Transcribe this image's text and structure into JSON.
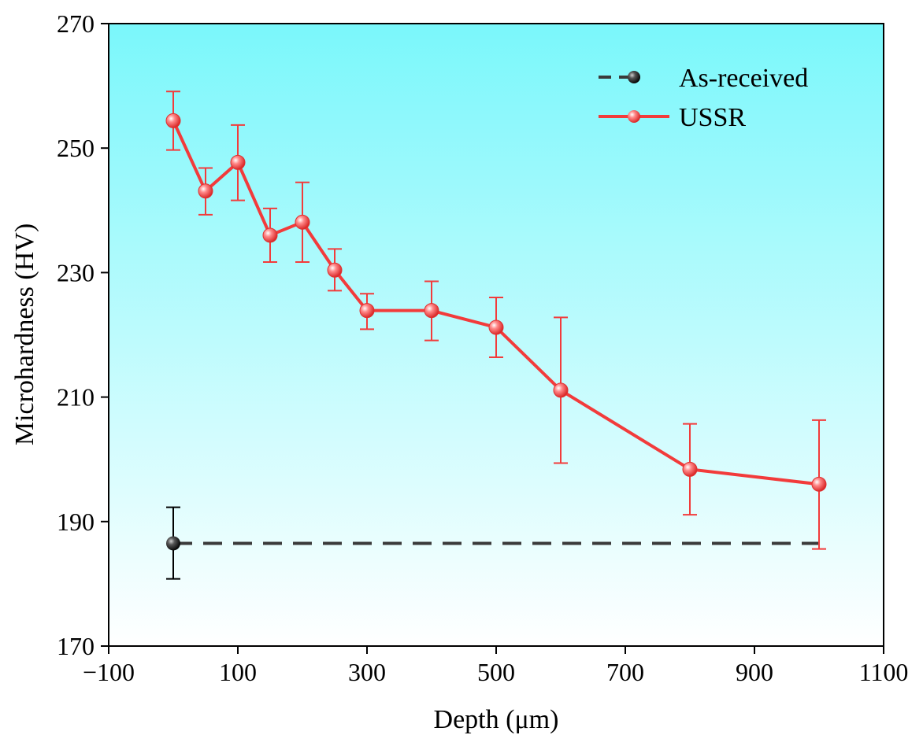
{
  "chart_data": {
    "type": "line",
    "title": "",
    "xlabel": "Depth (μm)",
    "ylabel": "Microhardness (HV)",
    "xlim": [
      -100,
      1100
    ],
    "ylim": [
      170,
      270
    ],
    "xticks": [
      -100,
      100,
      300,
      500,
      700,
      900,
      1100
    ],
    "xtick_labels": [
      "−100",
      "100",
      "300",
      "500",
      "700",
      "900",
      "1100"
    ],
    "yticks": [
      170,
      190,
      210,
      230,
      250,
      270
    ],
    "ytick_labels": [
      "170",
      "190",
      "210",
      "230",
      "250",
      "270"
    ],
    "grid": false,
    "legend_position": "top-right",
    "background_gradient": [
      "#7af7fb",
      "#ffffff"
    ],
    "series": [
      {
        "name": "As-received",
        "style": "dashed",
        "color": "#3a3a3a",
        "marker_color": "#111111",
        "points": [
          {
            "x": 0,
            "y": 186.5,
            "err_low": 180.8,
            "err_high": 192.3
          }
        ],
        "reference_line": {
          "x_start": 0,
          "x_end": 1000,
          "y": 186.5
        }
      },
      {
        "name": "USSR",
        "style": "solid",
        "color": "#f23b3b",
        "marker_color": "#f23b3b",
        "points": [
          {
            "x": 0,
            "y": 254.4,
            "err_low": 249.7,
            "err_high": 259.1
          },
          {
            "x": 50,
            "y": 243.1,
            "err_low": 239.3,
            "err_high": 246.8
          },
          {
            "x": 100,
            "y": 247.7,
            "err_low": 241.6,
            "err_high": 253.7
          },
          {
            "x": 150,
            "y": 236.0,
            "err_low": 231.7,
            "err_high": 240.3
          },
          {
            "x": 200,
            "y": 238.1,
            "err_low": 231.7,
            "err_high": 244.5
          },
          {
            "x": 250,
            "y": 230.4,
            "err_low": 227.1,
            "err_high": 233.8
          },
          {
            "x": 300,
            "y": 223.9,
            "err_low": 220.9,
            "err_high": 226.6
          },
          {
            "x": 400,
            "y": 223.9,
            "err_low": 219.1,
            "err_high": 228.6
          },
          {
            "x": 500,
            "y": 221.2,
            "err_low": 216.4,
            "err_high": 226.0
          },
          {
            "x": 600,
            "y": 211.1,
            "err_low": 199.4,
            "err_high": 222.8
          },
          {
            "x": 800,
            "y": 198.4,
            "err_low": 191.1,
            "err_high": 205.7
          },
          {
            "x": 1000,
            "y": 196.0,
            "err_low": 185.6,
            "err_high": 206.3
          }
        ]
      }
    ]
  }
}
